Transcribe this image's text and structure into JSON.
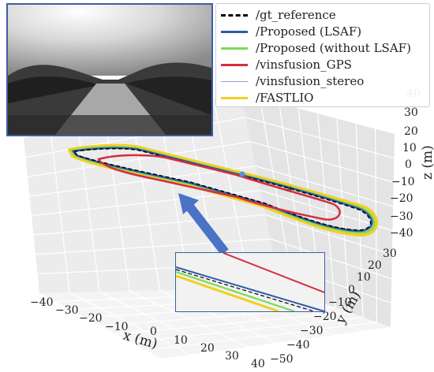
{
  "chart_data": {
    "type": "line",
    "projection": "3d",
    "xlabel": "x (m)",
    "ylabel": "y (m)",
    "zlabel": "z (m)",
    "x_ticks": [
      "−40",
      "−30",
      "−20",
      "−10",
      "0",
      "10",
      "20",
      "30",
      "40"
    ],
    "y_ticks": [
      "−50",
      "−40",
      "−30",
      "−20",
      "−10",
      "0",
      "10",
      "20",
      "30"
    ],
    "z_ticks": [
      "−40",
      "−30",
      "−20",
      "−10",
      "0",
      "10",
      "20",
      "30",
      "40"
    ],
    "xlim": [
      -40,
      40
    ],
    "ylim": [
      -50,
      30
    ],
    "zlim": [
      -40,
      40
    ],
    "grid": true,
    "legend_position": "top-right",
    "series": [
      {
        "name": "/gt_reference",
        "color": "#000000",
        "style": "dashed"
      },
      {
        "name": "/Proposed (LSAF)",
        "color": "#2f5aa6",
        "style": "solid"
      },
      {
        "name": "/Proposed (without LSAF)",
        "color": "#7ed957",
        "style": "solid"
      },
      {
        "name": "/vinsfusion_GPS",
        "color": "#d62d3d",
        "style": "solid"
      },
      {
        "name": "/vinsfusion_stereo",
        "color": "#9b9bd6",
        "style": "solid"
      },
      {
        "name": "/FASTLIO",
        "color": "#f0d020",
        "style": "solid"
      }
    ],
    "inset": {
      "description_visible": false
    },
    "camera_image": {
      "kind": "grayscale road scene"
    }
  }
}
